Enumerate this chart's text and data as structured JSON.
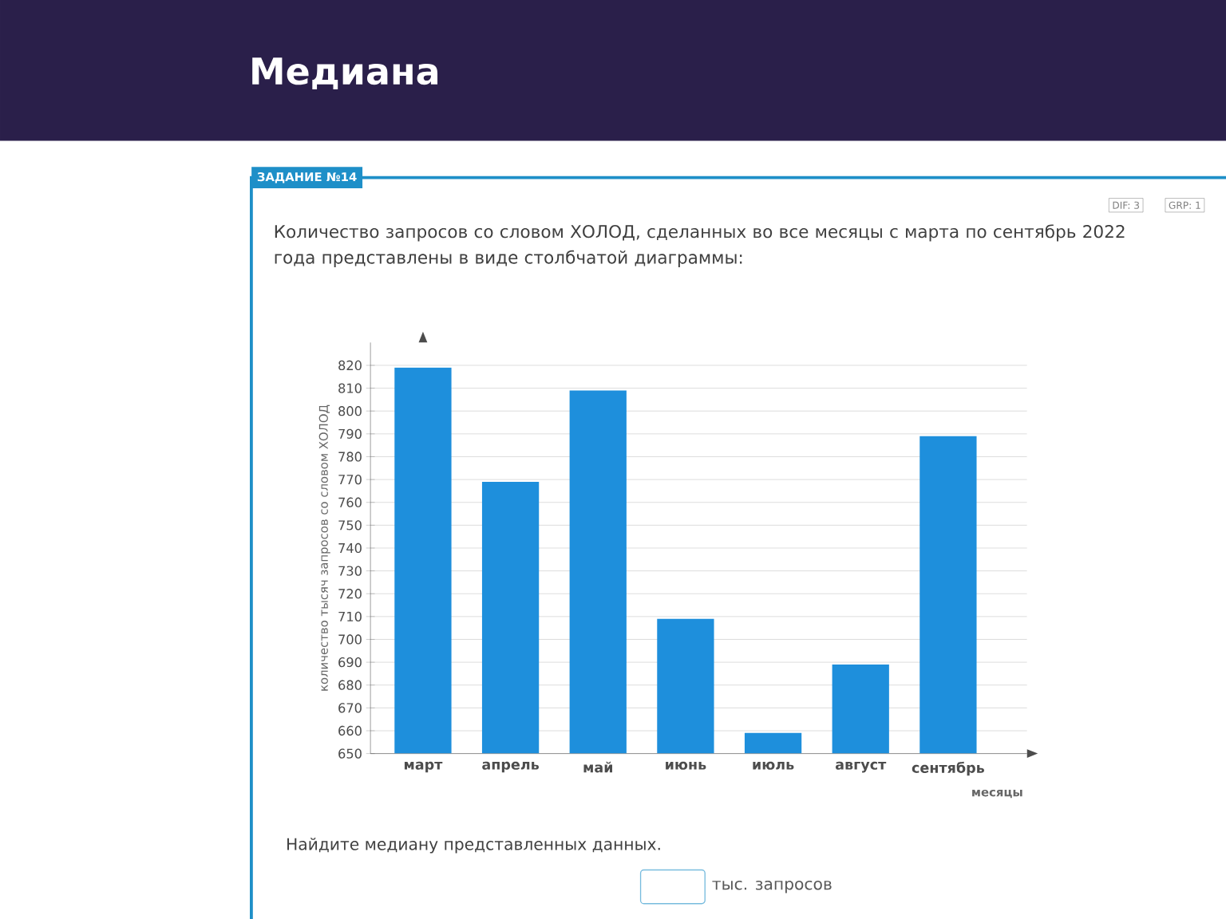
{
  "chart_data": {
    "type": "bar",
    "title": "Медиана",
    "subtitle": "Количество запросов со словом ХОЛОД, сделанных во все месяцы с марта по сентябрь 2022 года представлены в виде столбчатой диаграммы:",
    "categories": [
      "март",
      "апрель",
      "май",
      "июнь",
      "июль",
      "август",
      "сентябрь"
    ],
    "values": [
      819,
      769,
      809,
      709,
      659,
      689,
      789
    ],
    "color": "#1e8fdc",
    "ylim": [
      650,
      830
    ],
    "yticks": [
      650,
      660,
      670,
      680,
      690,
      700,
      710,
      720,
      730,
      740,
      750,
      760,
      770,
      780,
      790,
      800,
      810,
      820
    ],
    "ylabel": "количество тысяч запросов со словом ХОЛОД",
    "xlabel": "месяцы",
    "grid": "y",
    "annotations": [
      "ЗАДАНИЕ №14",
      "DIF: 3",
      "GRP: 1",
      "Найдите медиану представленных данных.",
      "тыс. запросов"
    ]
  }
}
